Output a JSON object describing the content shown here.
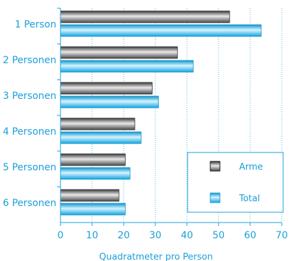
{
  "chart_data": {
    "type": "bar",
    "orientation": "horizontal",
    "categories": [
      "1 Person",
      "2 Personen",
      "3 Personen",
      "4 Personen",
      "5 Personen",
      "6 Personen"
    ],
    "series": [
      {
        "name": "Arme",
        "values": [
          53.5,
          37,
          29,
          23.5,
          20.5,
          18.5
        ],
        "color": "#7f7f7f"
      },
      {
        "name": "Total",
        "values": [
          63.5,
          42,
          31,
          25.5,
          22,
          20.5
        ],
        "color": "#1eb6f0"
      }
    ],
    "xlabel": "Quadratmeter pro Person",
    "xlim": [
      0,
      70
    ],
    "xticks": [
      0,
      10,
      20,
      30,
      40,
      50,
      60,
      70
    ],
    "grid": "vertical dotted",
    "legend_position": "lower-right",
    "colors": {
      "text": "#1a9fd9",
      "axis": "#1a9fd9",
      "grid": "#49b8e6"
    }
  }
}
